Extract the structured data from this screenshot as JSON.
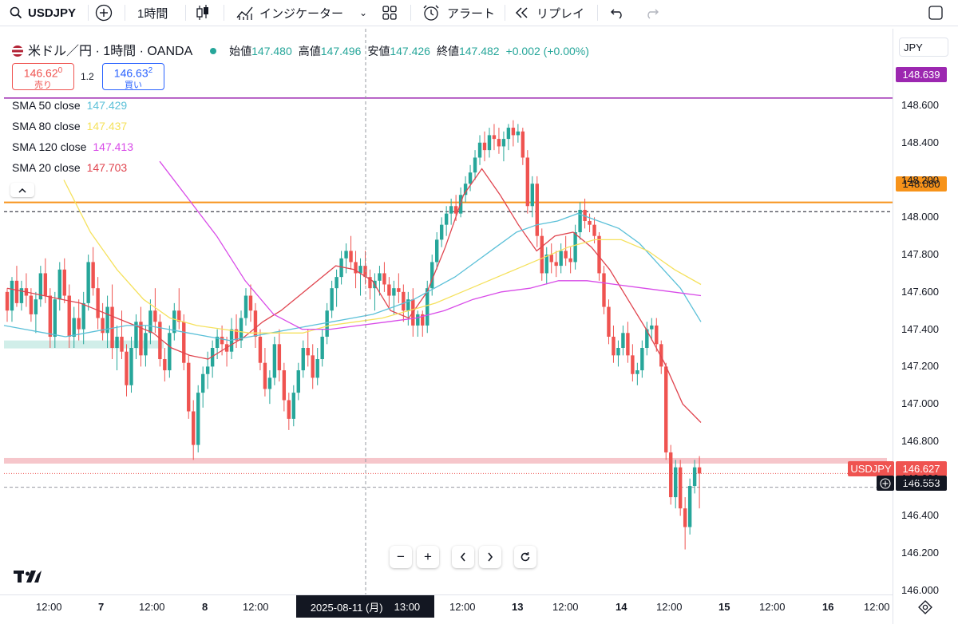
{
  "toolbar": {
    "symbol": "USDJPY",
    "interval": "1時間",
    "indicators_label": "インジケーター",
    "alert_label": "アラート",
    "replay_label": "リプレイ"
  },
  "legend": {
    "title": "米ドル／円 · 1時間 · OANDA",
    "open_label": "始値",
    "open": "147.480",
    "high_label": "高値",
    "high": "147.496",
    "low_label": "安値",
    "low": "147.426",
    "close_label": "終値",
    "close": "147.482",
    "change": "+0.002 (+0.00%)",
    "sell_price_main": "146.62",
    "sell_price_sup": "0",
    "sell_label": "売り",
    "spread": "1.2",
    "buy_price_main": "146.63",
    "buy_price_sup": "2",
    "buy_label": "買い"
  },
  "currency": "JPY",
  "sma": [
    {
      "name": "SMA 50 close",
      "value": "147.429",
      "color": "#5bc0d8"
    },
    {
      "name": "SMA 80 close",
      "value": "147.437",
      "color": "#f5e15c"
    },
    {
      "name": "SMA 120 close",
      "value": "147.413",
      "color": "#d84ae8"
    },
    {
      "name": "SMA 20 close",
      "value": "147.703",
      "color": "#e0454f"
    }
  ],
  "price_tags": {
    "purple_line": "148.639",
    "orange_line": "148.080",
    "symbol_tag": "USDJPY",
    "last_price": "146.627",
    "crosshair_price": "146.553"
  },
  "time_axis": [
    "12:00",
    "7",
    "12:00",
    "8",
    "12:00",
    "12:00",
    "13",
    "12:00",
    "14",
    "12:00",
    "15",
    "12:00",
    "16",
    "12:00"
  ],
  "crosshair_time": "2025-08-11 (月)",
  "crosshair_time_tail": "13:00",
  "colors": {
    "up": "#26a69a",
    "down": "#ef5350",
    "purple_line": "#9c27b0",
    "orange_line": "#f7931a"
  },
  "chart_data": {
    "type": "candlestick",
    "title": "米ドル／円 · 1時間 · OANDA",
    "ylim": [
      146.0,
      148.7
    ],
    "y_ticks": [
      148.6,
      148.4,
      148.2,
      148.0,
      147.8,
      147.6,
      147.4,
      147.2,
      147.0,
      146.8,
      146.6,
      146.4,
      146.2,
      146.0
    ],
    "horizontal_lines": [
      148.639,
      148.08,
      148.03,
      146.553
    ],
    "candles": [
      [
        147.6,
        147.62,
        147.44,
        147.5
      ],
      [
        147.5,
        147.68,
        147.44,
        147.66
      ],
      [
        147.66,
        147.74,
        147.52,
        147.54
      ],
      [
        147.54,
        147.66,
        147.5,
        147.62
      ],
      [
        147.62,
        147.7,
        147.52,
        147.58
      ],
      [
        147.58,
        147.62,
        147.44,
        147.48
      ],
      [
        147.48,
        147.6,
        147.38,
        147.56
      ],
      [
        147.56,
        147.74,
        147.52,
        147.7
      ],
      [
        147.7,
        147.78,
        147.54,
        147.58
      ],
      [
        147.58,
        147.62,
        147.3,
        147.36
      ],
      [
        147.36,
        147.6,
        147.3,
        147.56
      ],
      [
        147.56,
        147.76,
        147.5,
        147.72
      ],
      [
        147.72,
        147.78,
        147.54,
        147.58
      ],
      [
        147.58,
        147.64,
        147.3,
        147.36
      ],
      [
        147.36,
        147.52,
        147.3,
        147.46
      ],
      [
        147.46,
        147.56,
        147.34,
        147.4
      ],
      [
        147.4,
        147.6,
        147.32,
        147.54
      ],
      [
        147.54,
        147.8,
        147.5,
        147.76
      ],
      [
        147.76,
        147.84,
        147.58,
        147.62
      ],
      [
        147.62,
        147.68,
        147.4,
        147.46
      ],
      [
        147.46,
        147.54,
        147.34,
        147.38
      ],
      [
        147.38,
        147.58,
        147.3,
        147.52
      ],
      [
        147.52,
        147.64,
        147.24,
        147.3
      ],
      [
        147.3,
        147.42,
        147.18,
        147.36
      ],
      [
        147.36,
        147.5,
        147.24,
        147.28
      ],
      [
        147.28,
        147.32,
        147.04,
        147.1
      ],
      [
        147.1,
        147.36,
        147.06,
        147.3
      ],
      [
        147.3,
        147.48,
        147.24,
        147.44
      ],
      [
        147.44,
        147.52,
        147.2,
        147.26
      ],
      [
        147.26,
        147.42,
        147.2,
        147.38
      ],
      [
        147.38,
        147.56,
        147.32,
        147.5
      ],
      [
        147.5,
        147.62,
        147.38,
        147.44
      ],
      [
        147.44,
        147.48,
        147.2,
        147.24
      ],
      [
        147.24,
        147.3,
        147.12,
        147.18
      ],
      [
        147.18,
        147.42,
        147.14,
        147.38
      ],
      [
        147.38,
        147.54,
        147.34,
        147.5
      ],
      [
        147.5,
        147.62,
        147.4,
        147.44
      ],
      [
        147.44,
        147.48,
        147.18,
        147.22
      ],
      [
        147.22,
        147.26,
        146.92,
        146.96
      ],
      [
        146.96,
        147.02,
        146.7,
        146.78
      ],
      [
        146.78,
        147.1,
        146.74,
        147.06
      ],
      [
        147.06,
        147.2,
        146.98,
        147.16
      ],
      [
        147.16,
        147.28,
        147.08,
        147.2
      ],
      [
        147.2,
        147.34,
        147.14,
        147.3
      ],
      [
        147.3,
        147.4,
        147.24,
        147.36
      ],
      [
        147.36,
        147.42,
        147.26,
        147.32
      ],
      [
        147.32,
        147.36,
        147.2,
        147.28
      ],
      [
        147.28,
        147.46,
        147.24,
        147.4
      ],
      [
        147.4,
        147.48,
        147.3,
        147.34
      ],
      [
        147.34,
        147.5,
        147.3,
        147.46
      ],
      [
        147.46,
        147.62,
        147.42,
        147.58
      ],
      [
        147.58,
        147.64,
        147.44,
        147.5
      ],
      [
        147.5,
        147.54,
        147.3,
        147.36
      ],
      [
        147.36,
        147.4,
        147.18,
        147.22
      ],
      [
        147.22,
        147.3,
        147.04,
        147.08
      ],
      [
        147.08,
        147.18,
        147.0,
        147.14
      ],
      [
        147.14,
        147.36,
        147.1,
        147.32
      ],
      [
        147.32,
        147.4,
        147.12,
        147.18
      ],
      [
        147.18,
        147.22,
        146.96,
        147.02
      ],
      [
        147.02,
        147.06,
        146.86,
        146.92
      ],
      [
        146.92,
        147.1,
        146.88,
        147.06
      ],
      [
        147.06,
        147.22,
        147.02,
        147.18
      ],
      [
        147.18,
        147.34,
        147.14,
        147.3
      ],
      [
        147.3,
        147.4,
        147.2,
        147.26
      ],
      [
        147.26,
        147.32,
        147.08,
        147.14
      ],
      [
        147.14,
        147.3,
        147.1,
        147.24
      ],
      [
        147.24,
        147.4,
        147.2,
        147.36
      ],
      [
        147.36,
        147.54,
        147.32,
        147.5
      ],
      [
        147.5,
        147.66,
        147.46,
        147.62
      ],
      [
        147.62,
        147.72,
        147.52,
        147.68
      ],
      [
        147.68,
        147.82,
        147.64,
        147.78
      ],
      [
        147.78,
        147.86,
        147.7,
        147.82
      ],
      [
        147.82,
        147.9,
        147.72,
        147.76
      ],
      [
        147.76,
        147.82,
        147.62,
        147.7
      ],
      [
        147.7,
        147.78,
        147.58,
        147.74
      ],
      [
        147.74,
        147.82,
        147.64,
        147.68
      ],
      [
        147.68,
        147.72,
        147.56,
        147.62
      ],
      [
        147.62,
        147.7,
        147.5,
        147.66
      ],
      [
        147.66,
        147.74,
        147.58,
        147.7
      ],
      [
        147.7,
        147.76,
        147.6,
        147.64
      ],
      [
        147.64,
        147.68,
        147.52,
        147.58
      ],
      [
        147.58,
        147.66,
        147.48,
        147.62
      ],
      [
        147.62,
        147.7,
        147.54,
        147.6
      ],
      [
        147.6,
        147.64,
        147.44,
        147.5
      ],
      [
        147.5,
        147.6,
        147.42,
        147.56
      ],
      [
        147.56,
        147.62,
        147.36,
        147.42
      ],
      [
        147.42,
        147.5,
        147.36,
        147.48
      ],
      [
        147.48,
        147.5,
        147.36,
        147.42
      ],
      [
        147.42,
        147.66,
        147.38,
        147.62
      ],
      [
        147.62,
        147.8,
        147.58,
        147.76
      ],
      [
        147.76,
        147.92,
        147.72,
        147.88
      ],
      [
        147.88,
        148.0,
        147.84,
        147.96
      ],
      [
        147.96,
        148.06,
        147.9,
        148.02
      ],
      [
        148.02,
        148.1,
        147.96,
        148.06
      ],
      [
        148.06,
        148.12,
        147.98,
        148.02
      ],
      [
        148.02,
        148.16,
        148.0,
        148.12
      ],
      [
        148.12,
        148.22,
        148.08,
        148.18
      ],
      [
        148.18,
        148.28,
        148.14,
        148.24
      ],
      [
        148.24,
        148.36,
        148.2,
        148.32
      ],
      [
        148.32,
        148.44,
        148.28,
        148.4
      ],
      [
        148.4,
        148.46,
        148.3,
        148.36
      ],
      [
        148.36,
        148.48,
        148.32,
        148.44
      ],
      [
        148.44,
        148.5,
        148.36,
        148.42
      ],
      [
        148.42,
        148.48,
        148.34,
        148.38
      ],
      [
        148.38,
        148.46,
        148.3,
        148.42
      ],
      [
        148.42,
        148.5,
        148.36,
        148.48
      ],
      [
        148.48,
        148.52,
        148.38,
        148.44
      ],
      [
        148.44,
        148.5,
        148.4,
        148.46
      ],
      [
        148.46,
        148.48,
        148.28,
        148.32
      ],
      [
        148.32,
        148.36,
        148.02,
        148.06
      ],
      [
        148.06,
        148.22,
        148.0,
        148.18
      ],
      [
        148.18,
        148.22,
        147.84,
        147.9
      ],
      [
        147.9,
        147.94,
        147.66,
        147.7
      ],
      [
        147.7,
        147.84,
        147.64,
        147.8
      ],
      [
        147.8,
        147.86,
        147.7,
        147.76
      ],
      [
        147.76,
        147.82,
        147.68,
        147.74
      ],
      [
        147.74,
        147.86,
        147.7,
        147.82
      ],
      [
        147.82,
        147.9,
        147.74,
        147.78
      ],
      [
        147.78,
        147.84,
        147.7,
        147.76
      ],
      [
        147.76,
        147.96,
        147.72,
        147.92
      ],
      [
        147.92,
        148.08,
        147.88,
        148.04
      ],
      [
        148.04,
        148.1,
        147.94,
        147.98
      ],
      [
        147.98,
        148.02,
        147.92,
        147.96
      ],
      [
        147.96,
        148.0,
        147.86,
        147.9
      ],
      [
        147.9,
        147.92,
        147.66,
        147.7
      ],
      [
        147.7,
        147.74,
        147.48,
        147.52
      ],
      [
        147.52,
        147.56,
        147.32,
        147.36
      ],
      [
        147.36,
        147.42,
        147.22,
        147.26
      ],
      [
        147.26,
        147.34,
        147.2,
        147.3
      ],
      [
        147.3,
        147.42,
        147.26,
        147.38
      ],
      [
        147.38,
        147.44,
        147.22,
        147.26
      ],
      [
        147.26,
        147.32,
        147.12,
        147.16
      ],
      [
        147.16,
        147.22,
        147.1,
        147.18
      ],
      [
        147.18,
        147.34,
        147.14,
        147.3
      ],
      [
        147.3,
        147.44,
        147.26,
        147.4
      ],
      [
        147.4,
        147.46,
        147.34,
        147.42
      ],
      [
        147.42,
        147.46,
        147.28,
        147.32
      ],
      [
        147.32,
        147.34,
        147.16,
        147.2
      ],
      [
        147.2,
        147.22,
        146.7,
        146.74
      ],
      [
        146.74,
        146.78,
        146.46,
        146.5
      ],
      [
        146.5,
        146.7,
        146.44,
        146.66
      ],
      [
        146.66,
        146.7,
        146.4,
        146.44
      ],
      [
        146.44,
        146.5,
        146.22,
        146.34
      ],
      [
        146.34,
        146.6,
        146.3,
        146.56
      ],
      [
        146.56,
        146.7,
        146.52,
        146.66
      ],
      [
        146.66,
        146.72,
        146.44,
        146.627
      ]
    ],
    "series": [
      {
        "name": "SMA 20 close",
        "values": [
          147.62,
          147.6,
          147.58,
          147.56,
          147.54,
          147.5,
          147.46,
          147.42,
          147.38,
          147.3,
          147.26,
          147.24,
          147.3,
          147.36,
          147.44,
          147.5,
          147.58,
          147.66,
          147.74,
          147.72,
          147.66,
          147.5,
          147.46,
          147.6,
          147.84,
          148.12,
          148.26,
          148.12,
          147.96,
          147.82,
          147.9,
          147.92,
          147.84,
          147.72,
          147.56,
          147.4,
          147.22,
          147.0,
          146.9
        ]
      },
      {
        "name": "SMA 50 close",
        "values": [
          147.42,
          147.4,
          147.38,
          147.36,
          147.38,
          147.4,
          147.42,
          147.42,
          147.4,
          147.38,
          147.36,
          147.34,
          147.36,
          147.38,
          147.4,
          147.42,
          147.44,
          147.46,
          147.48,
          147.52,
          147.56,
          147.62,
          147.68,
          147.76,
          147.84,
          147.92,
          147.96,
          147.98,
          148.02,
          147.98,
          147.94,
          147.86,
          147.74,
          147.62,
          147.44
        ]
      },
      {
        "name": "SMA 80 close",
        "values": [
          148.2,
          147.92,
          147.72,
          147.56,
          147.46,
          147.42,
          147.4,
          147.38,
          147.38,
          147.38,
          147.42,
          147.44,
          147.46,
          147.5,
          147.54,
          147.6,
          147.66,
          147.72,
          147.78,
          147.84,
          147.88,
          147.88,
          147.82,
          147.72,
          147.64
        ]
      },
      {
        "name": "SMA 120 close",
        "values": [
          148.3,
          148.1,
          147.9,
          147.66,
          147.48,
          147.4,
          147.4,
          147.42,
          147.44,
          147.46,
          147.5,
          147.56,
          147.6,
          147.62,
          147.66,
          147.66,
          147.64,
          147.62,
          147.6,
          147.58
        ]
      }
    ]
  }
}
